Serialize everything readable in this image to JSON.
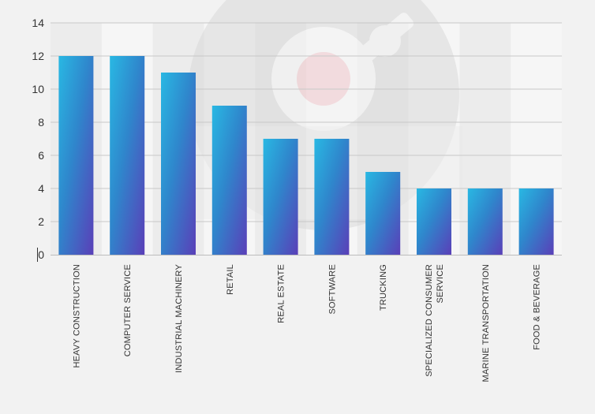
{
  "chart_data": {
    "type": "bar",
    "title": "",
    "xlabel": "",
    "ylabel": "",
    "categories": [
      "HEAVY CONSTRUCTION",
      "COMPUTER SERVICE",
      "INDUSTRIAL MACHINERY",
      "RETAIL",
      "REAL ESTATE",
      "SOFTWARE",
      "TRUCKING",
      "SPECIALIZED CONSUMER SERVICE",
      "MARINE TRANSPORTATION",
      "FOOD & BEVERAGE"
    ],
    "values": [
      12,
      12,
      11,
      9,
      7,
      7,
      5,
      4,
      4,
      4
    ],
    "ylim": [
      0,
      14
    ],
    "yticks": [
      0,
      2,
      4,
      6,
      8,
      10,
      12,
      14
    ],
    "grid": true,
    "legend": "none",
    "colors": {
      "bar_top": "#29b8e3",
      "bar_mid": "#2f86cc",
      "bar_bottom": "#5a3fb8",
      "grid": "#c8c8c8",
      "axis": "#bdbdbd",
      "background": "#f2f2f2"
    }
  },
  "watermark": {
    "icon": "magnifier-logo-icon"
  }
}
